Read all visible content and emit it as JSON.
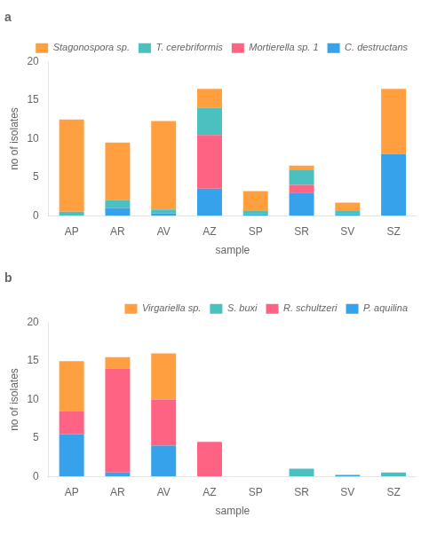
{
  "chart_data": [
    {
      "type": "bar",
      "stacked": true,
      "title": "a",
      "xlabel": "sample",
      "ylabel": "no of isolates",
      "categories": [
        "AP",
        "AR",
        "AV",
        "AZ",
        "SP",
        "SR",
        "SV",
        "SZ"
      ],
      "series": [
        {
          "name": "C. destructans",
          "values": [
            0.0,
            1.0,
            0.3,
            3.5,
            0.2,
            3.0,
            0.2,
            8.0
          ]
        },
        {
          "name": "Mortierella sp. 1",
          "values": [
            0.0,
            0.0,
            0.0,
            7.0,
            0.0,
            1.0,
            0.0,
            0.0
          ]
        },
        {
          "name": "T. cerebriformis",
          "values": [
            0.5,
            1.0,
            0.5,
            3.5,
            0.5,
            2.0,
            0.5,
            0.0
          ]
        },
        {
          "name": "Stagonospora sp.",
          "values": [
            12.0,
            7.5,
            11.5,
            2.5,
            2.5,
            0.5,
            1.0,
            8.5
          ]
        }
      ],
      "ylim": [
        0,
        20
      ],
      "yticks": [
        0,
        5,
        10,
        15,
        20
      ],
      "grid": false,
      "legend": "upper right"
    },
    {
      "type": "bar",
      "stacked": true,
      "title": "b",
      "xlabel": "sample",
      "ylabel": "no of isolates",
      "categories": [
        "AP",
        "AR",
        "AV",
        "AZ",
        "SP",
        "SR",
        "SV",
        "SZ"
      ],
      "series": [
        {
          "name": "P. aquilina",
          "values": [
            5.5,
            0.5,
            4.0,
            0.0,
            0.0,
            0.0,
            0.2,
            0.0
          ]
        },
        {
          "name": "R. schultzeri",
          "values": [
            3.0,
            13.5,
            6.0,
            4.5,
            0.0,
            0.0,
            0.0,
            0.0
          ]
        },
        {
          "name": "S. buxi",
          "values": [
            0.0,
            0.0,
            0.0,
            0.0,
            0.0,
            1.0,
            0.0,
            0.5
          ]
        },
        {
          "name": "Virgariella sp.",
          "values": [
            6.5,
            1.5,
            6.0,
            0.0,
            0.0,
            0.0,
            0.0,
            0.0
          ]
        }
      ],
      "ylim": [
        0,
        20
      ],
      "yticks": [
        0,
        5,
        10,
        15,
        20
      ],
      "grid": false,
      "legend": "upper right"
    }
  ]
}
